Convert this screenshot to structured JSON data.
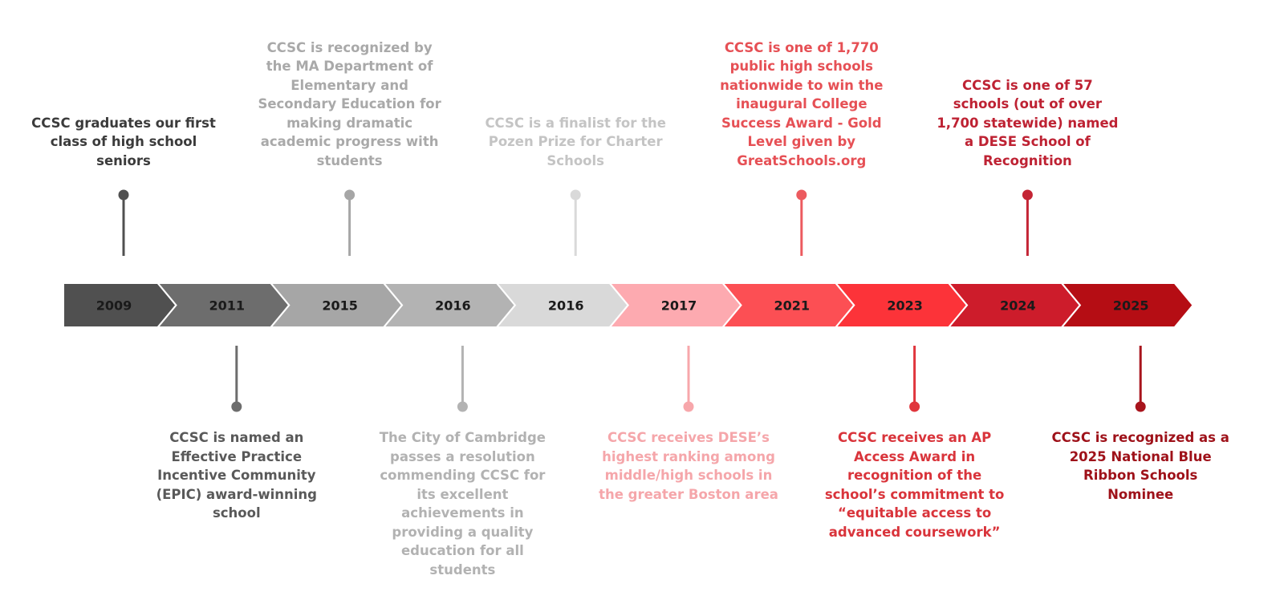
{
  "milestones": [
    {
      "year": "2009",
      "fill": "#505050",
      "text_color": "#1a1a1a",
      "marker_color": "#505050",
      "position": "top",
      "text": "CCSC graduates our first class of high school seniors"
    },
    {
      "year": "2011",
      "fill": "#6d6d6d",
      "text_color": "#1a1a1a",
      "marker_color": "#6d6d6d",
      "position": "bottom",
      "text": "CCSC is named an Effective Practice Incentive Community (EPIC) award-winning school"
    },
    {
      "year": "2015",
      "fill": "#a6a6a6",
      "text_color": "#1a1a1a",
      "marker_color": "#a6a6a6",
      "position": "top",
      "text": "CCSC is recognized by the MA Department of Elementary and Secondary Education for making dramatic academic progress with students"
    },
    {
      "year": "2016",
      "fill": "#b3b3b3",
      "text_color": "#1a1a1a",
      "marker_color": "#b3b3b3",
      "position": "bottom",
      "text": "The City of Cambridge passes a resolution commending CCSC for its excellent achievements in providing a quality education for all students"
    },
    {
      "year": "2016",
      "fill": "#d9d9d9",
      "text_color": "#1a1a1a",
      "marker_color": "#d9d9d9",
      "position": "top",
      "text": "CCSC is a finalist for the Pozen Prize for Charter Schools"
    },
    {
      "year": "2017",
      "fill": "#fdaab0",
      "text_color": "#1a1a1a",
      "marker_color": "#f7a7ab",
      "position": "bottom",
      "text": "CCSC receives DESE’s highest ranking among middle/high schools in the greater Boston area"
    },
    {
      "year": "2021",
      "fill": "#fc4f54",
      "text_color": "#1a1a1a",
      "marker_color": "#ec5b5f",
      "position": "top",
      "text": "CCSC is one of 1,770 public high schools nationwide to win the inaugural College Success Award - Gold Level given by GreatSchools.org"
    },
    {
      "year": "2023",
      "fill": "#fc3339",
      "text_color": "#1a1a1a",
      "marker_color": "#e0363d",
      "position": "bottom",
      "text": "CCSC receives an AP Access Award in recognition of the school’s commitment to “equitable access to advanced coursework”"
    },
    {
      "year": "2024",
      "fill": "#cd1c2b",
      "text_color": "#1a1a1a",
      "marker_color": "#c42535",
      "position": "top",
      "text": "CCSC is one of 57 schools (out of over 1,700 statewide) named a DESE School of Recognition"
    },
    {
      "year": "2025",
      "fill": "#b50d14",
      "text_color": "#1a1a1a",
      "marker_color": "#a8141c",
      "position": "bottom",
      "text": "CCSC is recognized as a 2025 National Blue Ribbon Schools Nominee"
    }
  ],
  "event_text_colors": [
    "#3b3b3b",
    "#595959",
    "#a9a9a9",
    "#b2b2b2",
    "#c4c4c4",
    "#f5a6aa",
    "#e65055",
    "#d9343b",
    "#be2233",
    "#9e1119"
  ]
}
